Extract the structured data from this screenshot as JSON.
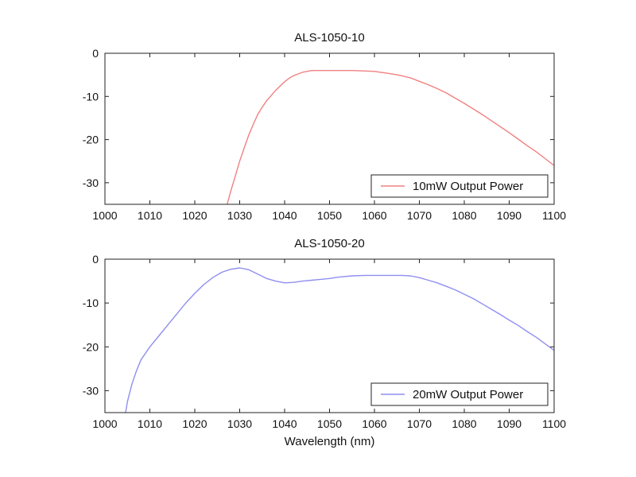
{
  "chart_data": [
    {
      "type": "line",
      "title": "ALS-1050-10",
      "xlabel": "",
      "ylabel": "",
      "xlim": [
        1000,
        1100
      ],
      "ylim": [
        -35,
        0
      ],
      "xticks": [
        1000,
        1010,
        1020,
        1030,
        1040,
        1050,
        1060,
        1070,
        1080,
        1090,
        1100
      ],
      "yticks": [
        0,
        -10,
        -20,
        -30
      ],
      "grid": false,
      "legend_position": "bottom-right",
      "series": [
        {
          "name": "10mW Output Power",
          "color": "#f08080",
          "x": [
            1027.2,
            1028,
            1029,
            1030,
            1031,
            1032,
            1033,
            1034,
            1035,
            1036,
            1037,
            1038,
            1039,
            1040,
            1041,
            1042,
            1043,
            1044,
            1045,
            1046,
            1048,
            1050,
            1052,
            1055,
            1058,
            1060,
            1062,
            1064,
            1066,
            1068,
            1070,
            1072,
            1074,
            1076,
            1078,
            1080,
            1082,
            1084,
            1086,
            1088,
            1090,
            1092,
            1094,
            1096,
            1098,
            1100
          ],
          "y": [
            -35,
            -32,
            -28.5,
            -25,
            -22,
            -19,
            -16.5,
            -14.2,
            -12.5,
            -11,
            -9.8,
            -8.6,
            -7.6,
            -6.6,
            -5.8,
            -5.2,
            -4.8,
            -4.4,
            -4.2,
            -4.0,
            -4.0,
            -4.0,
            -4.0,
            -4.0,
            -4.1,
            -4.2,
            -4.5,
            -4.8,
            -5.2,
            -5.7,
            -6.5,
            -7.3,
            -8.2,
            -9.2,
            -10.4,
            -11.6,
            -12.9,
            -14.2,
            -15.6,
            -17.0,
            -18.4,
            -19.9,
            -21.4,
            -22.8,
            -24.4,
            -26.0
          ]
        }
      ]
    },
    {
      "type": "line",
      "title": "ALS-1050-20",
      "xlabel": "Wavelength (nm)",
      "ylabel": "",
      "xlim": [
        1000,
        1100
      ],
      "ylim": [
        -35,
        0
      ],
      "xticks": [
        1000,
        1010,
        1020,
        1030,
        1040,
        1050,
        1060,
        1070,
        1080,
        1090,
        1100
      ],
      "yticks": [
        0,
        -10,
        -20,
        -30
      ],
      "grid": false,
      "legend_position": "bottom-right",
      "series": [
        {
          "name": "20mW Output Power",
          "color": "#8f8ff0",
          "x": [
            1004.6,
            1005,
            1006,
            1007,
            1008,
            1009,
            1010,
            1012,
            1014,
            1016,
            1018,
            1020,
            1022,
            1024,
            1026,
            1028,
            1030,
            1032,
            1034,
            1036,
            1038,
            1040,
            1042,
            1044,
            1046,
            1048,
            1050,
            1052,
            1055,
            1058,
            1062,
            1066,
            1068,
            1070,
            1072,
            1074,
            1076,
            1078,
            1080,
            1082,
            1084,
            1086,
            1088,
            1090,
            1092,
            1094,
            1096,
            1098,
            1100
          ],
          "y": [
            -35,
            -32.5,
            -28.5,
            -25.5,
            -23,
            -21.5,
            -20,
            -17.5,
            -15,
            -12.5,
            -10,
            -7.8,
            -5.8,
            -4.2,
            -3.0,
            -2.3,
            -2.0,
            -2.4,
            -3.4,
            -4.4,
            -5.0,
            -5.4,
            -5.3,
            -5.0,
            -4.8,
            -4.6,
            -4.4,
            -4.1,
            -3.8,
            -3.7,
            -3.7,
            -3.7,
            -3.8,
            -4.2,
            -4.8,
            -5.4,
            -6.2,
            -7.0,
            -8.0,
            -9.0,
            -10.2,
            -11.4,
            -12.6,
            -13.9,
            -15.1,
            -16.5,
            -17.8,
            -19.3,
            -20.8
          ]
        }
      ]
    }
  ]
}
